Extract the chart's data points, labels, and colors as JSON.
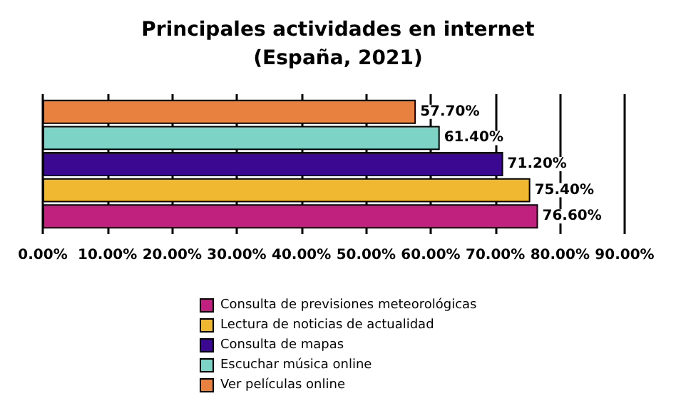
{
  "chart_data": {
    "type": "bar",
    "orientation": "horizontal",
    "title": "Principales actividades en internet\n(España, 2021)",
    "categories": [
      null
    ],
    "series": [
      {
        "name": "Consulta de previsiones meteorológicas",
        "color": "#c0207e",
        "values": [
          76.6
        ],
        "value_labels": [
          "76.60%"
        ]
      },
      {
        "name": "Lectura de noticias de actualidad",
        "color": "#efb830",
        "values": [
          75.4
        ],
        "value_labels": [
          "75.40%"
        ]
      },
      {
        "name": "Consulta de mapas",
        "color": "#3b0892",
        "values": [
          71.2
        ],
        "value_labels": [
          "71.20%"
        ]
      },
      {
        "name": "Escuchar música online",
        "color": "#7dd3c6",
        "values": [
          61.4
        ],
        "value_labels": [
          "61.40%"
        ]
      },
      {
        "name": "Ver películas online",
        "color": "#e8813f",
        "values": [
          57.7
        ],
        "value_labels": [
          "57.70%"
        ]
      }
    ],
    "xlim": [
      0,
      90
    ],
    "xticks": [
      {
        "value": 0,
        "label": "0.00%"
      },
      {
        "value": 10,
        "label": "10.00%"
      },
      {
        "value": 20,
        "label": "20.00%"
      },
      {
        "value": 30,
        "label": "30.00%"
      },
      {
        "value": 40,
        "label": "40.00%"
      },
      {
        "value": 50,
        "label": "50.00%"
      },
      {
        "value": 60,
        "label": "60.00%"
      },
      {
        "value": 70,
        "label": "70.00%"
      },
      {
        "value": 80,
        "label": "80.00%"
      },
      {
        "value": 90,
        "label": "90.00%"
      }
    ],
    "grid": "x",
    "legend": "bottom"
  }
}
